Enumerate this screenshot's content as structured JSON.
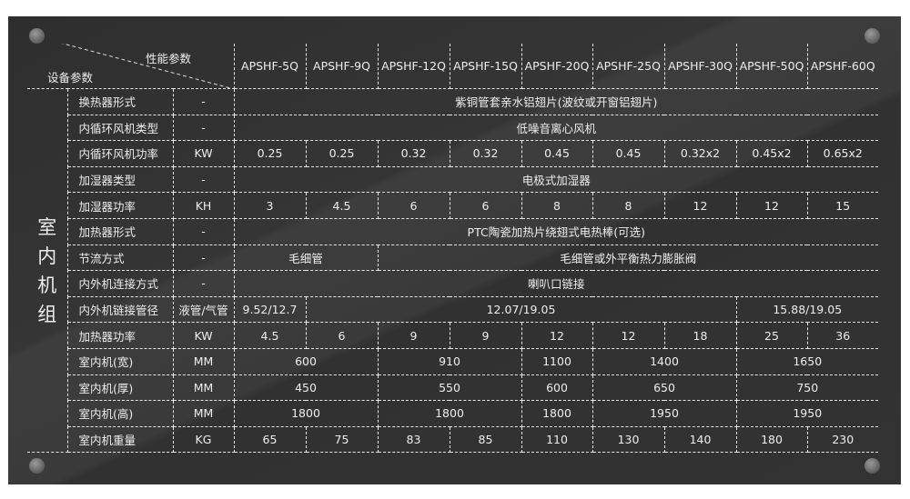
{
  "header": {
    "top_label": "性能参数",
    "bottom_label": "设备参数",
    "models": [
      "APSHF-5Q",
      "APSHF-9Q",
      "APSHF-12Q",
      "APSHF-15Q",
      "APSHF-20Q",
      "APSHF-25Q",
      "APSHF-30Q",
      "APSHF-50Q",
      "APSHF-60Q"
    ]
  },
  "group_label": [
    "室",
    "内",
    "机",
    "组"
  ],
  "rows": [
    {
      "name": "换热器形式",
      "unit": "-",
      "cells": [
        {
          "v": "紫铜管套亲水铝翅片(波纹或开窗铝翅片)",
          "span": 9
        }
      ]
    },
    {
      "name": "内循环风机类型",
      "unit": "-",
      "cells": [
        {
          "v": "低噪音离心风机",
          "span": 9
        }
      ]
    },
    {
      "name": "内循环风机功率",
      "unit": "KW",
      "cells": [
        {
          "v": "0.25"
        },
        {
          "v": "0.25"
        },
        {
          "v": "0.32"
        },
        {
          "v": "0.32"
        },
        {
          "v": "0.45"
        },
        {
          "v": "0.45"
        },
        {
          "v": "0.32x2"
        },
        {
          "v": "0.45x2"
        },
        {
          "v": "0.65x2"
        }
      ]
    },
    {
      "name": "加湿器类型",
      "unit": "-",
      "cells": [
        {
          "v": "电极式加湿器",
          "span": 9
        }
      ]
    },
    {
      "name": "加湿器功率",
      "unit": "KH",
      "cells": [
        {
          "v": "3"
        },
        {
          "v": "4.5"
        },
        {
          "v": "6"
        },
        {
          "v": "6"
        },
        {
          "v": "8"
        },
        {
          "v": "8"
        },
        {
          "v": "12"
        },
        {
          "v": "12"
        },
        {
          "v": "15"
        }
      ]
    },
    {
      "name": "加热器形式",
      "unit": "-",
      "cells": [
        {
          "v": "PTC陶瓷加热片绕翅式电热棒(可选)",
          "span": 9
        }
      ]
    },
    {
      "name": "节流方式",
      "unit": "-",
      "cells": [
        {
          "v": "毛细管",
          "span": 2
        },
        {
          "v": "毛细管或外平衡热力膨胀阀",
          "span": 7
        }
      ]
    },
    {
      "name": "内外机连接方式",
      "unit": "-",
      "cells": [
        {
          "v": "喇叭口链接",
          "span": 9
        }
      ]
    },
    {
      "name": "内外机链接管径",
      "unit": "液管/气管",
      "cells": [
        {
          "v": "9.52/12.7"
        },
        {
          "v": "12.07/19.05",
          "span": 6
        },
        {
          "v": "15.88/19.05",
          "span": 2
        }
      ]
    },
    {
      "name": "加热器功率",
      "unit": "KW",
      "cells": [
        {
          "v": "4.5"
        },
        {
          "v": "6"
        },
        {
          "v": "9"
        },
        {
          "v": "9"
        },
        {
          "v": "12"
        },
        {
          "v": "12"
        },
        {
          "v": "18"
        },
        {
          "v": "25"
        },
        {
          "v": "36"
        }
      ]
    },
    {
      "name": "室内机(宽)",
      "unit": "MM",
      "cells": [
        {
          "v": "600",
          "span": 2
        },
        {
          "v": "910",
          "span": 2
        },
        {
          "v": "1100"
        },
        {
          "v": "1400",
          "span": 2
        },
        {
          "v": "1650",
          "span": 2
        }
      ]
    },
    {
      "name": "室内机(厚)",
      "unit": "MM",
      "cells": [
        {
          "v": "450",
          "span": 2
        },
        {
          "v": "550",
          "span": 2
        },
        {
          "v": "600"
        },
        {
          "v": "650",
          "span": 2
        },
        {
          "v": "750",
          "span": 2
        }
      ]
    },
    {
      "name": "室内机(高)",
      "unit": "MM",
      "cells": [
        {
          "v": "1800",
          "span": 2
        },
        {
          "v": "1800",
          "span": 2
        },
        {
          "v": "1800"
        },
        {
          "v": "1950",
          "span": 2
        },
        {
          "v": "1950",
          "span": 2
        }
      ]
    },
    {
      "name": "室内机重量",
      "unit": "KG",
      "cells": [
        {
          "v": "65"
        },
        {
          "v": "75"
        },
        {
          "v": "83"
        },
        {
          "v": "85"
        },
        {
          "v": "110"
        },
        {
          "v": "130"
        },
        {
          "v": "140"
        },
        {
          "v": "180"
        },
        {
          "v": "230"
        }
      ]
    }
  ],
  "colors": {
    "panel": "#333333",
    "text": "#eeeeee",
    "grid": "#e8e8e8"
  }
}
